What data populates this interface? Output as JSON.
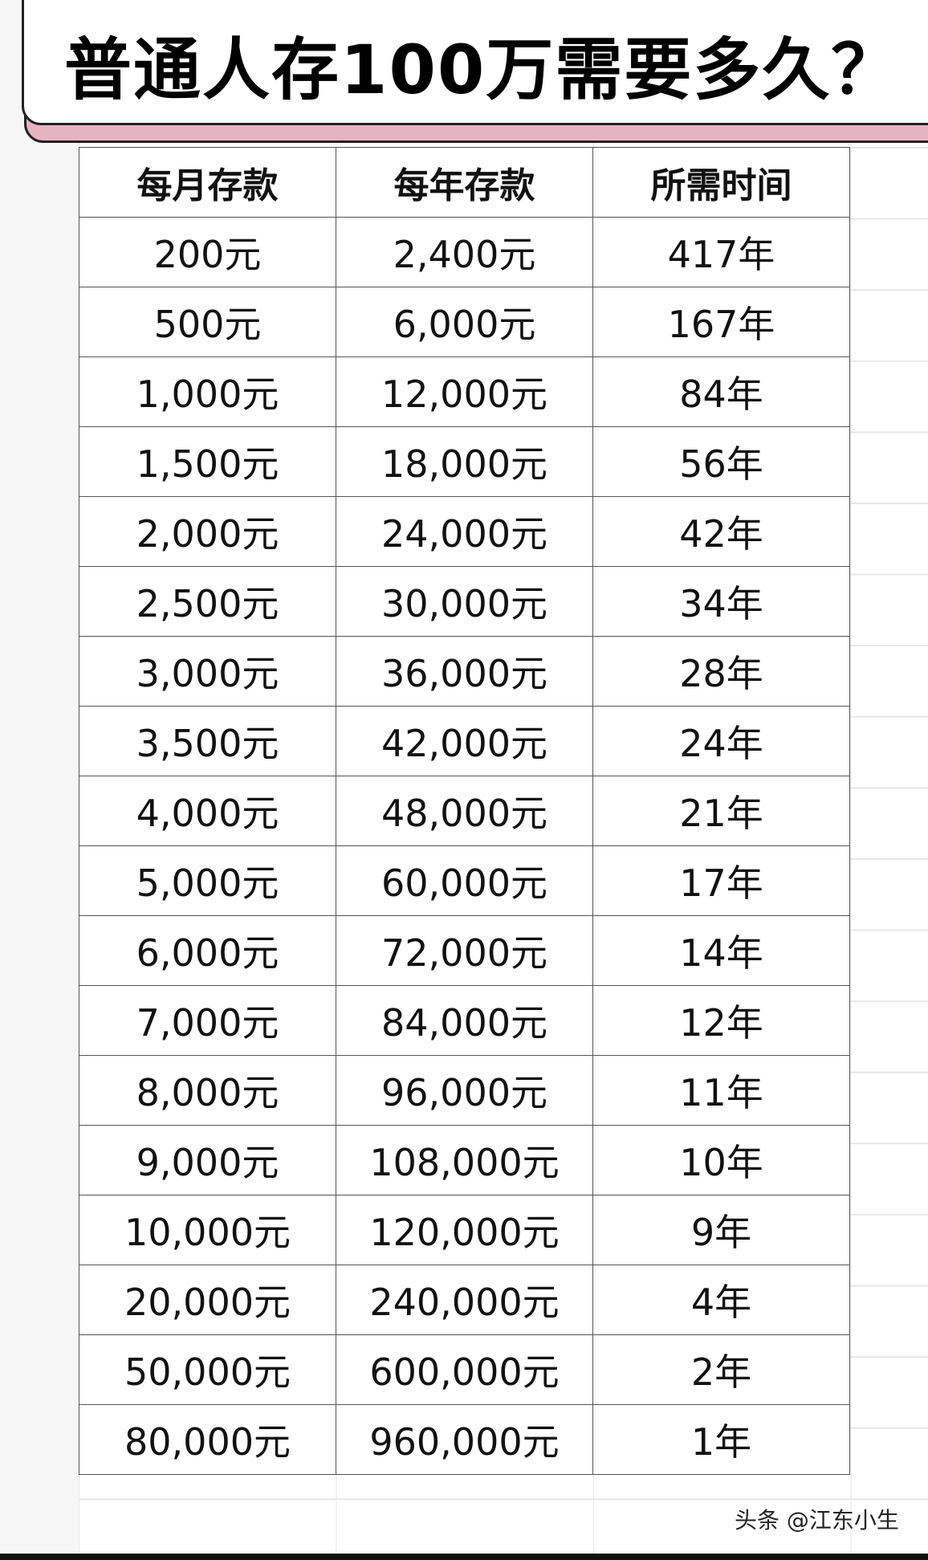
{
  "title": "普通人存100万需要多久？",
  "table": {
    "headers": [
      "每月存款",
      "每年存款",
      "所需时间"
    ],
    "rows": [
      [
        "200元",
        "2,400元",
        "417年"
      ],
      [
        "500元",
        "6,000元",
        "167年"
      ],
      [
        "1,000元",
        "12,000元",
        "84年"
      ],
      [
        "1,500元",
        "18,000元",
        "56年"
      ],
      [
        "2,000元",
        "24,000元",
        "42年"
      ],
      [
        "2,500元",
        "30,000元",
        "34年"
      ],
      [
        "3,000元",
        "36,000元",
        "28年"
      ],
      [
        "3,500元",
        "42,000元",
        "24年"
      ],
      [
        "4,000元",
        "48,000元",
        "21年"
      ],
      [
        "5,000元",
        "60,000元",
        "17年"
      ],
      [
        "6,000元",
        "72,000元",
        "14年"
      ],
      [
        "7,000元",
        "84,000元",
        "12年"
      ],
      [
        "8,000元",
        "96,000元",
        "11年"
      ],
      [
        "9,000元",
        "108,000元",
        "10年"
      ],
      [
        "10,000元",
        "120,000元",
        "9年"
      ],
      [
        "20,000元",
        "240,000元",
        "4年"
      ],
      [
        "50,000元",
        "600,000元",
        "2年"
      ],
      [
        "80,000元",
        "960,000元",
        "1年"
      ]
    ]
  },
  "watermark": "头条 @江东小生",
  "colors": {
    "title_shadow": "#e7b3c3",
    "border": "#222222"
  }
}
